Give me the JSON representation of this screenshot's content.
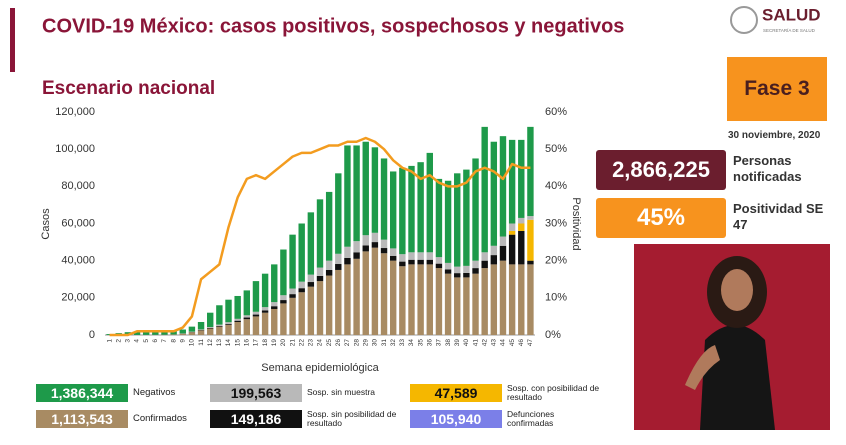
{
  "header": {
    "title": "COVID-19 México: casos positivos, sospechosos y negativos",
    "logo": "SALUD",
    "logo_sub": "SECRETARÍA DE SALUD",
    "subtitle": "Escenario nacional"
  },
  "panel": {
    "phase": "Fase 3",
    "date": "30 noviembre, 2020",
    "notified": "2,866,225",
    "notified_label": "Personas notificadas",
    "positivity": "45%",
    "positivity_label": "Positividad SE 47"
  },
  "chart_data": {
    "type": "bar",
    "stacked": true,
    "x_label": "Semana epidemiológica",
    "y_label": "Casos",
    "y2_label": "Positividad",
    "categories": [
      "1",
      "2",
      "3",
      "4",
      "5",
      "6",
      "7",
      "8",
      "9",
      "10",
      "11",
      "12",
      "13",
      "14",
      "15",
      "16",
      "17",
      "18",
      "19",
      "20",
      "21",
      "22",
      "23",
      "24",
      "25",
      "26",
      "27",
      "28",
      "29",
      "30",
      "31",
      "32",
      "33",
      "34",
      "35",
      "36",
      "37",
      "38",
      "39",
      "40",
      "41",
      "42",
      "43",
      "44",
      "45",
      "46",
      "47"
    ],
    "ylim": [
      0,
      120000
    ],
    "yticks": [
      0,
      {
        "value": 20000,
        "label": "20,000"
      },
      {
        "value": 40000,
        "label": "40,000"
      },
      {
        "value": 60000,
        "label": "60,000"
      },
      {
        "value": 80000,
        "label": "80,000"
      },
      {
        "value": 100000,
        "label": "100,000"
      },
      {
        "value": 120000,
        "label": "120,000"
      }
    ],
    "y2lim": [
      0,
      60
    ],
    "y2ticks": [
      {
        "value": 0,
        "label": "0%"
      },
      {
        "value": 10,
        "label": "10%"
      },
      {
        "value": 20,
        "label": "20%"
      },
      {
        "value": 30,
        "label": "30%"
      },
      {
        "value": 40,
        "label": "40%"
      },
      {
        "value": 50,
        "label": "50%"
      },
      {
        "value": 60,
        "label": "60%"
      }
    ],
    "grid": false,
    "series": [
      {
        "name": "Confirmados",
        "total": "1,113,543",
        "color": "#a88b63",
        "values": [
          5,
          10,
          15,
          30,
          60,
          100,
          150,
          300,
          700,
          1500,
          2500,
          3500,
          4500,
          5500,
          7000,
          8500,
          10000,
          12000,
          14000,
          17000,
          20000,
          23000,
          26000,
          29000,
          32000,
          35000,
          38000,
          41000,
          45000,
          47000,
          44000,
          40000,
          37000,
          38000,
          38000,
          38000,
          36000,
          33000,
          31000,
          31000,
          33000,
          36000,
          38000,
          40000,
          38000,
          38000,
          38000
        ]
      },
      {
        "name": "Sosp. sin posibilidad de resultado",
        "total": "149,186",
        "color": "#111111",
        "values": [
          0,
          0,
          0,
          0,
          0,
          0,
          0,
          0,
          50,
          100,
          200,
          300,
          400,
          500,
          700,
          900,
          1000,
          1200,
          1500,
          1800,
          2000,
          2200,
          2500,
          2800,
          3000,
          3200,
          3500,
          3500,
          3200,
          3000,
          2800,
          2600,
          2500,
          2500,
          2500,
          2500,
          2400,
          2300,
          2300,
          2400,
          3000,
          4000,
          5000,
          8000,
          16000,
          18000,
          2000
        ]
      },
      {
        "name": "Sosp. con posibilidad de resultado",
        "total": "47,589",
        "color": "#f5b700",
        "values": [
          0,
          0,
          0,
          0,
          0,
          0,
          0,
          0,
          0,
          0,
          0,
          0,
          0,
          0,
          0,
          0,
          0,
          0,
          0,
          0,
          0,
          0,
          0,
          0,
          0,
          0,
          0,
          0,
          0,
          0,
          0,
          0,
          0,
          0,
          0,
          0,
          0,
          0,
          0,
          0,
          0,
          0,
          0,
          0,
          2000,
          4000,
          22000
        ]
      },
      {
        "name": "Sosp. sin muestra",
        "total": "199,563",
        "color": "#b9b9b9",
        "values": [
          0,
          0,
          0,
          0,
          0,
          0,
          0,
          0,
          100,
          200,
          300,
          500,
          700,
          900,
          1000,
          1200,
          1500,
          1800,
          2200,
          2600,
          3000,
          3500,
          4000,
          4500,
          5000,
          5500,
          6000,
          6000,
          5500,
          5000,
          4500,
          4000,
          4000,
          4000,
          4000,
          4000,
          3500,
          3500,
          3500,
          3800,
          4000,
          4500,
          5000,
          5000,
          4000,
          3000,
          2000
        ]
      },
      {
        "name": "Negativos",
        "total": "1,386,344",
        "color": "#1e9a4a",
        "values": [
          500,
          1000,
          1500,
          1800,
          1800,
          1800,
          1800,
          1700,
          2100,
          2700,
          4000,
          7700,
          10400,
          12100,
          12300,
          13400,
          16500,
          18000,
          20300,
          24600,
          29000,
          31300,
          33500,
          36700,
          37000,
          43300,
          54500,
          51500,
          50300,
          46000,
          43700,
          41400,
          46500,
          46500,
          48500,
          53500,
          42100,
          44200,
          50200,
          51800,
          55000,
          67500,
          56000,
          54000,
          45000,
          42000,
          48000
        ]
      },
      {
        "type": "line",
        "axis": "y2",
        "color": "#f39c1f",
        "values": [
          0,
          0,
          0,
          1,
          1,
          1,
          1,
          1,
          2,
          5,
          15,
          17,
          19,
          29,
          37,
          42,
          43,
          42,
          44,
          46,
          48,
          49,
          49,
          50,
          51,
          51,
          52,
          52,
          53,
          52,
          50,
          47,
          45,
          44,
          42,
          43,
          41,
          40,
          40,
          41,
          44,
          45,
          44,
          42,
          46,
          45,
          45
        ]
      }
    ],
    "deaths": {
      "label": "Defunciones confirmadas",
      "total": "105,940",
      "color": "#7b7fe8"
    }
  }
}
